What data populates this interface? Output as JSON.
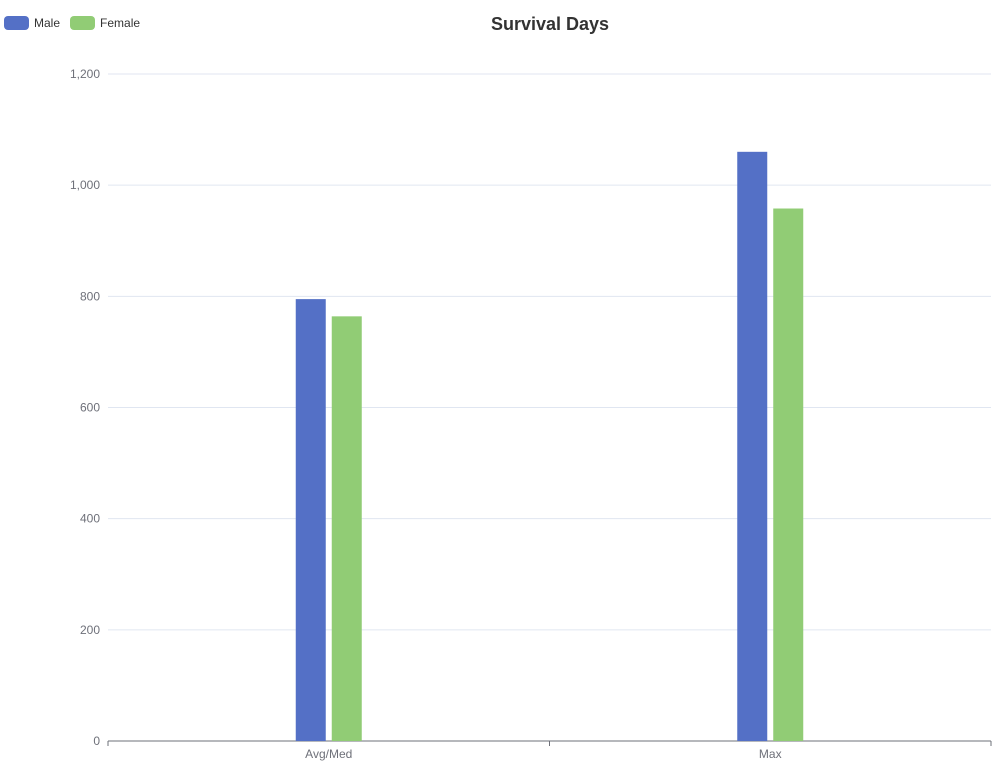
{
  "chart_data": {
    "type": "bar",
    "title": "Survival Days",
    "categories": [
      "Avg/Med",
      "Max"
    ],
    "series": [
      {
        "name": "Male",
        "color": "#5470c6",
        "values": [
          795,
          1060
        ]
      },
      {
        "name": "Female",
        "color": "#91cc75",
        "values": [
          764,
          958
        ]
      }
    ],
    "ylim": [
      0,
      1200
    ],
    "yticks": [
      0,
      200,
      400,
      600,
      800,
      1000,
      1200
    ],
    "ytick_labels": [
      "0",
      "200",
      "400",
      "600",
      "800",
      "1,000",
      "1,200"
    ],
    "grid": true,
    "legend_position": "top-left"
  }
}
